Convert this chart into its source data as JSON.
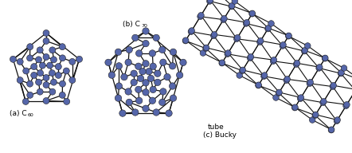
{
  "background_color": "#ffffff",
  "atom_color": "#5566aa",
  "atom_edge_color": "#222222",
  "bond_color": "#111111",
  "label_a": "(a) C",
  "label_a_sub": "60",
  "label_b": "(b) C",
  "label_b_sub": "70",
  "label_c1": "(c) Bucky",
  "label_c2": "tube",
  "fig_width": 4.42,
  "fig_height": 1.92,
  "dpi": 100
}
